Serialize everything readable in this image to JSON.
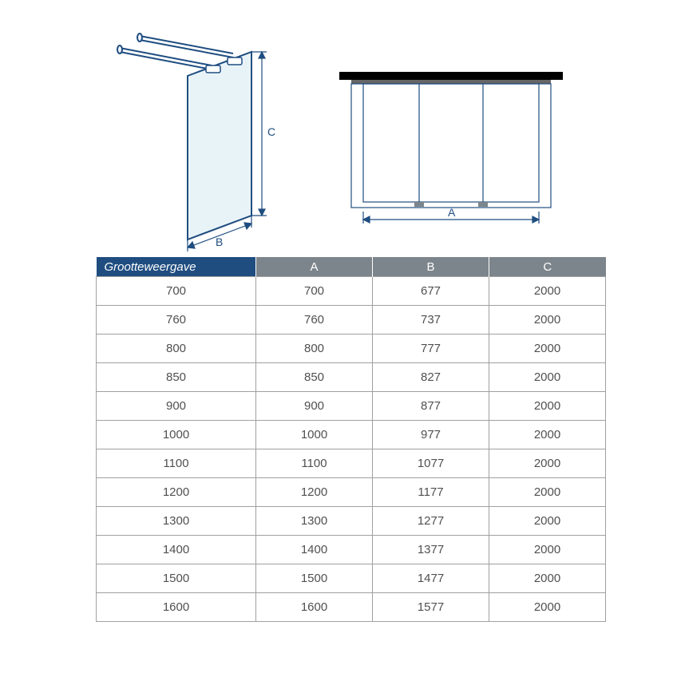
{
  "diagrams": {
    "stroke_color": "#1f4d80",
    "glass_fill": "#e8f3f8",
    "label_B": "B",
    "label_C": "C",
    "label_A": "A",
    "black_bar": "#000000",
    "top_bar_grey": "#666666"
  },
  "table": {
    "header_first_bg": "#1f4d80",
    "header_rest_bg": "#7c858b",
    "header_text_color": "#ffffff",
    "cell_border": "#a0a0a0",
    "cell_text": "#505050",
    "columns": [
      "Grootteweergave",
      "A",
      "B",
      "C"
    ],
    "rows": [
      [
        "700",
        "700",
        "677",
        "2000"
      ],
      [
        "760",
        "760",
        "737",
        "2000"
      ],
      [
        "800",
        "800",
        "777",
        "2000"
      ],
      [
        "850",
        "850",
        "827",
        "2000"
      ],
      [
        "900",
        "900",
        "877",
        "2000"
      ],
      [
        "1000",
        "1000",
        "977",
        "2000"
      ],
      [
        "1100",
        "1100",
        "1077",
        "2000"
      ],
      [
        "1200",
        "1200",
        "1177",
        "2000"
      ],
      [
        "1300",
        "1300",
        "1277",
        "2000"
      ],
      [
        "1400",
        "1400",
        "1377",
        "2000"
      ],
      [
        "1500",
        "1500",
        "1477",
        "2000"
      ],
      [
        "1600",
        "1600",
        "1577",
        "2000"
      ]
    ]
  }
}
